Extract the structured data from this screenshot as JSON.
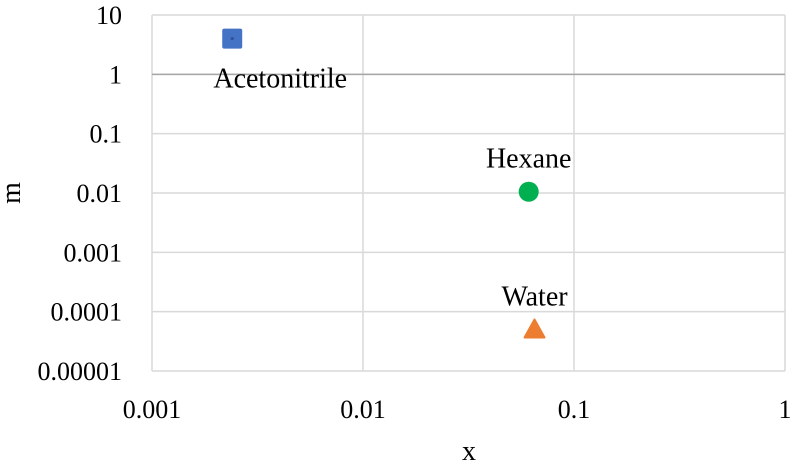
{
  "chart_data": {
    "type": "scatter",
    "title": "",
    "xlabel": "x",
    "ylabel": "m",
    "x_scale": "log",
    "y_scale": "log",
    "xlim": [
      0.001,
      1
    ],
    "ylim": [
      1e-05,
      10
    ],
    "x_ticks": [
      "0.001",
      "0.01",
      "0.1",
      "1"
    ],
    "y_ticks": [
      "0.00001",
      "0.0001",
      "0.001",
      "0.01",
      "0.1",
      "1",
      "10"
    ],
    "grid": true,
    "legend": "none",
    "points": [
      {
        "label": "Acetonitrile",
        "x": 0.0024,
        "y": 4.0,
        "marker": "square",
        "color": "#4472C4"
      },
      {
        "label": "Hexane",
        "x": 0.061,
        "y": 0.0105,
        "marker": "circle",
        "color": "#00B050"
      },
      {
        "label": "Water",
        "x": 0.065,
        "y": 5e-05,
        "marker": "triangle",
        "color": "#ED7D31"
      }
    ]
  }
}
